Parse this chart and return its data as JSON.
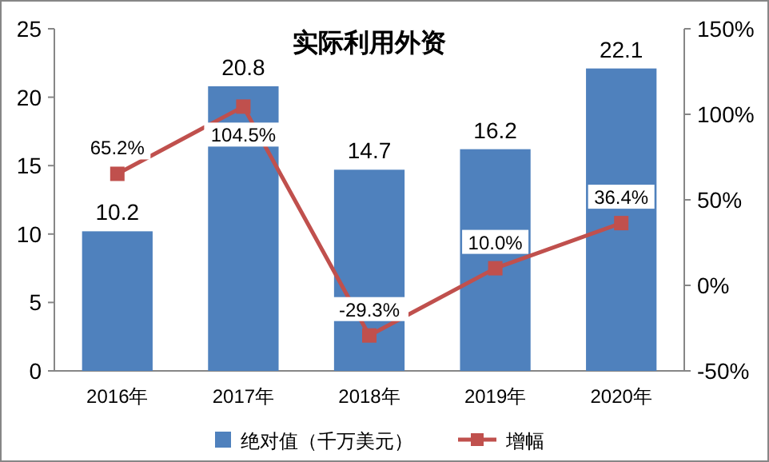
{
  "chart_data": {
    "type": "bar",
    "title": "实际利用外资",
    "categories": [
      "2016年",
      "2017年",
      "2018年",
      "2019年",
      "2020年"
    ],
    "series": [
      {
        "name": "绝对值（千万美元）",
        "color": "#4f81bd",
        "values": [
          10.2,
          20.8,
          14.7,
          16.2,
          22.1
        ],
        "value_labels": [
          "10.2",
          "20.8",
          "14.7",
          "16.2",
          "22.1"
        ]
      },
      {
        "name": "增幅",
        "type": "line",
        "axis": "y2",
        "color": "#c0504d",
        "marker": "square",
        "values": [
          65.2,
          104.5,
          -29.3,
          10.0,
          36.4
        ],
        "value_labels": [
          "65.2%",
          "104.5%",
          "-29.3%",
          "10.0%",
          "36.4%"
        ]
      }
    ],
    "ylim": [
      0,
      25
    ],
    "yticks": [
      0,
      5,
      10,
      15,
      20,
      25
    ],
    "y2lim": [
      -50,
      150
    ],
    "y2ticks": [
      {
        "value": -50,
        "label": "-50%"
      },
      {
        "value": 0,
        "label": "0%"
      },
      {
        "value": 50,
        "label": "50%"
      },
      {
        "value": 100,
        "label": "100%"
      },
      {
        "value": 150,
        "label": "150%"
      }
    ],
    "legend": "bottom",
    "grid": false
  }
}
